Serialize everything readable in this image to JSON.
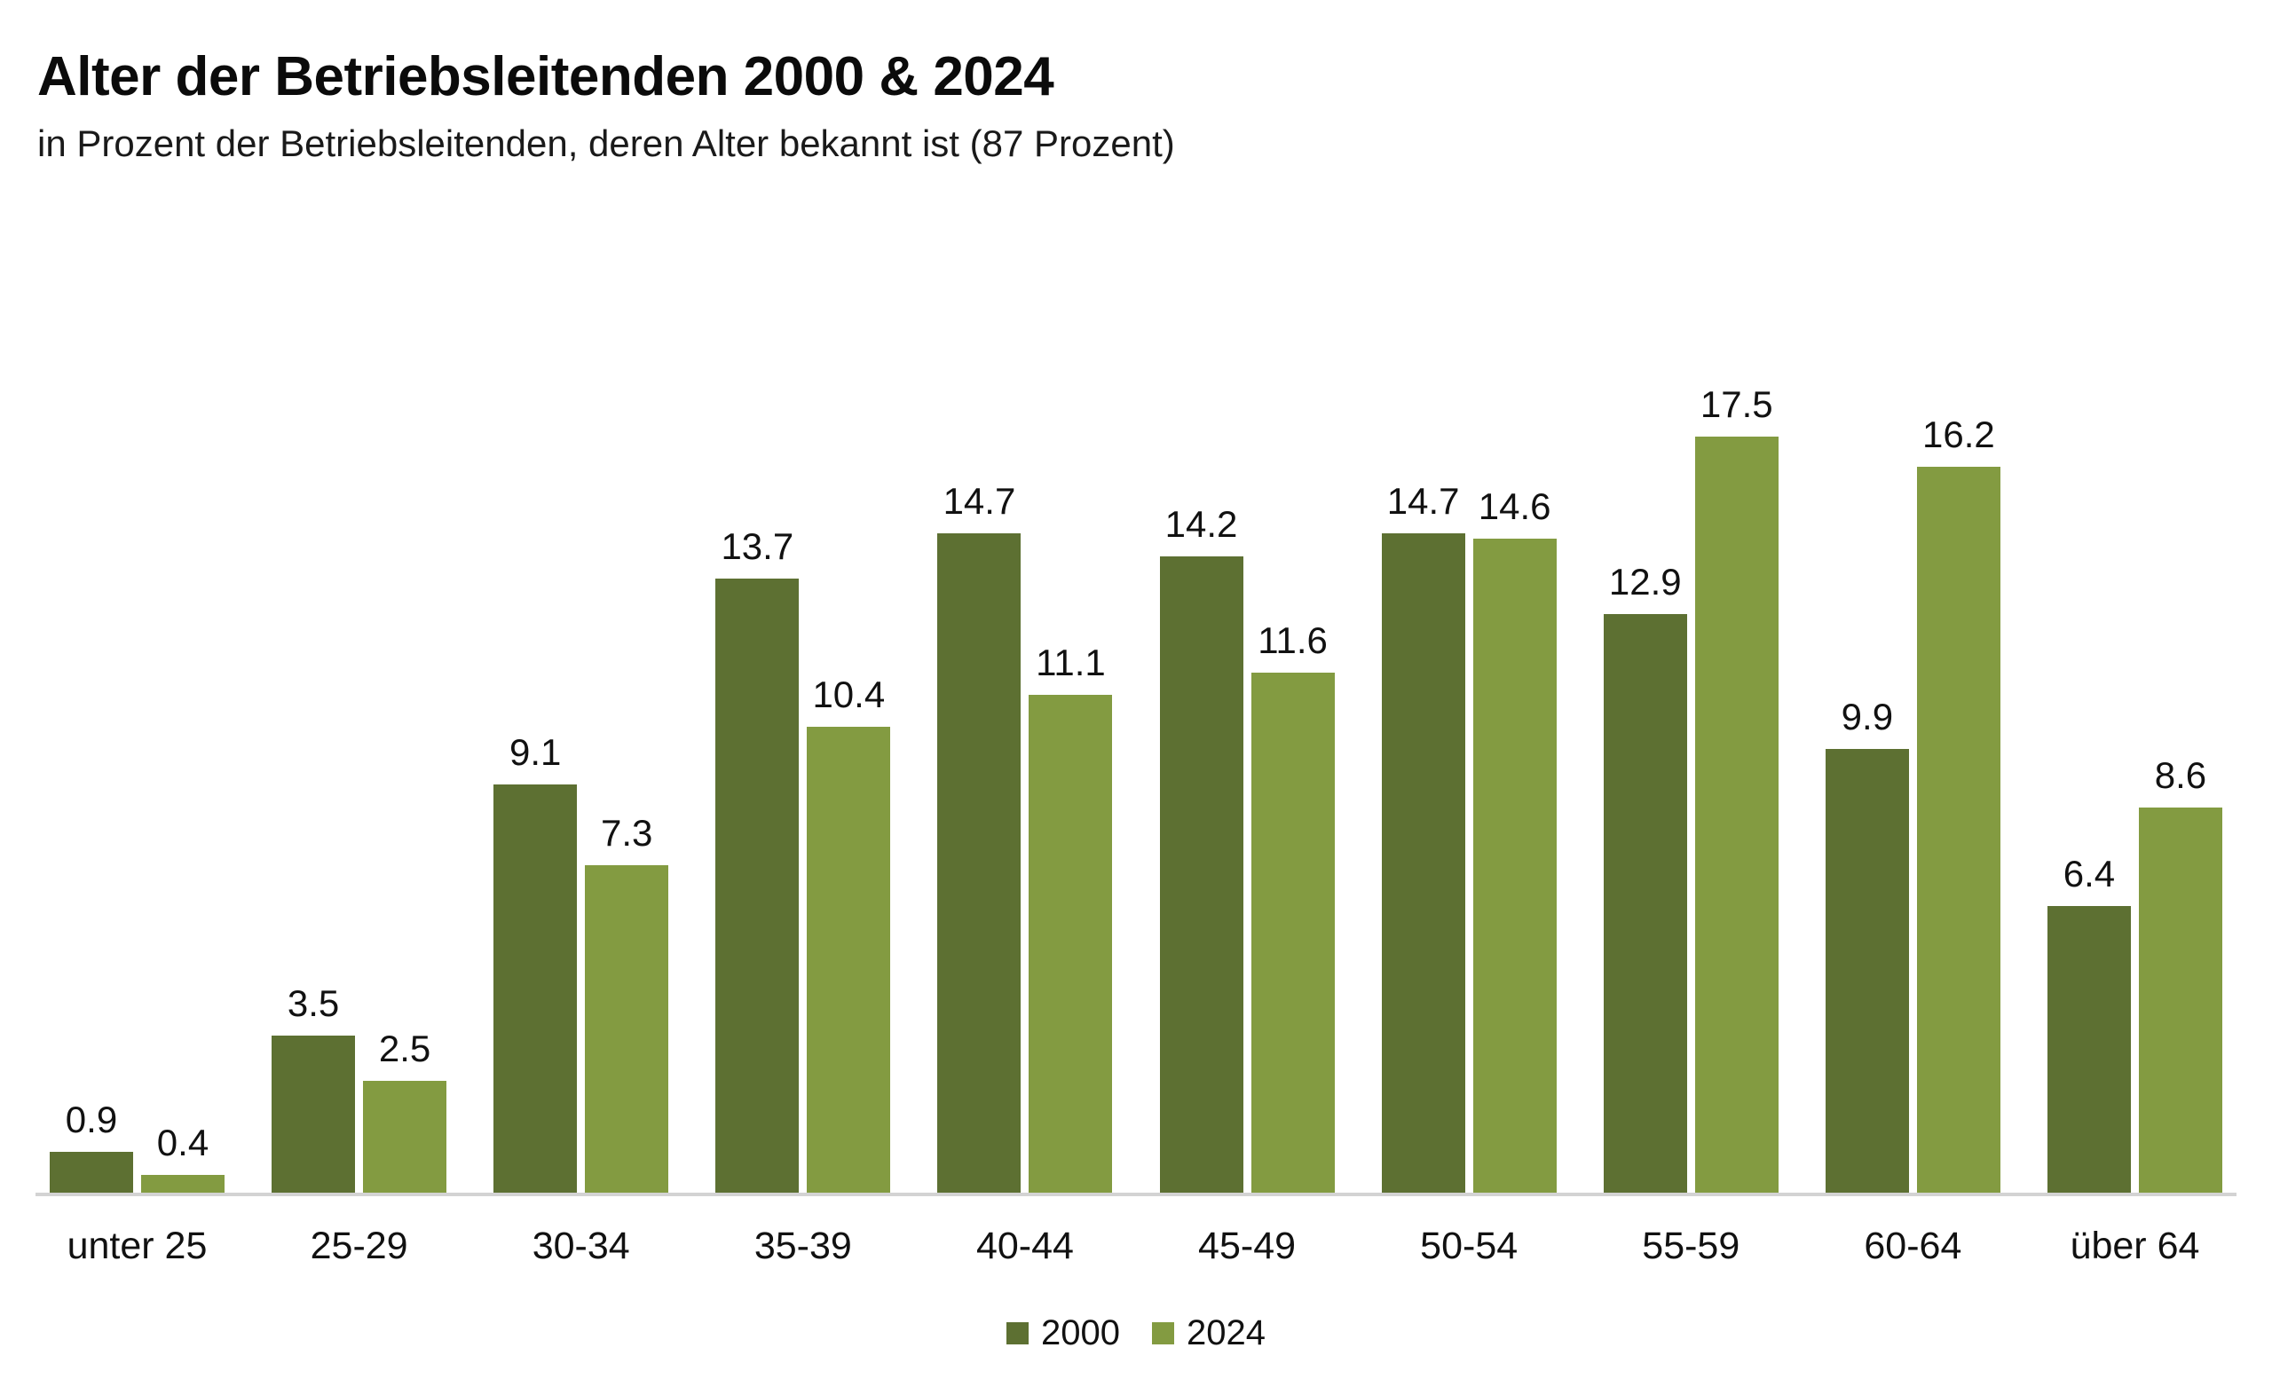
{
  "header": {
    "title": "Alter der Betriebsleitenden 2000 & 2024",
    "subtitle": "in Prozent der Betriebsleitenden, deren Alter bekannt ist (87 Prozent)"
  },
  "chart_data": {
    "type": "bar",
    "title": "Alter der Betriebsleitenden 2000 & 2024",
    "subtitle": "in Prozent der Betriebsleitenden, deren Alter bekannt ist (87 Prozent)",
    "categories": [
      "unter 25",
      "25-29",
      "30-34",
      "35-39",
      "40-44",
      "45-49",
      "50-54",
      "55-59",
      "60-64",
      "über 64"
    ],
    "series": [
      {
        "name": "2000",
        "color": "#5D7032",
        "values": [
          0.9,
          3.5,
          9.1,
          13.7,
          14.7,
          14.2,
          14.7,
          12.9,
          9.9,
          6.4
        ]
      },
      {
        "name": "2024",
        "color": "#839B41",
        "values": [
          0.4,
          2.5,
          7.3,
          10.4,
          11.1,
          11.6,
          14.6,
          17.5,
          16.2,
          8.6
        ]
      }
    ],
    "xlabel": "",
    "ylabel": "",
    "ylim": [
      0,
      18
    ],
    "grid": false,
    "value_labels": true,
    "legend_position": "bottom",
    "axis_line_color": "#d3d3d3",
    "text_color": "#111111",
    "background": "#ffffff"
  }
}
